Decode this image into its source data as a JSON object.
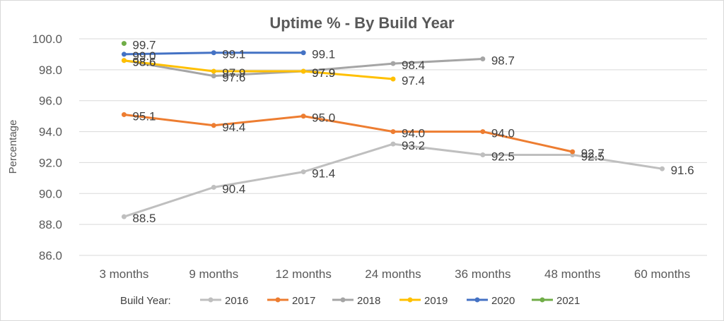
{
  "chart_data": {
    "type": "line",
    "title": "Uptime % - By Build Year",
    "xlabel": "",
    "ylabel": "Percentage",
    "ylim": [
      86.0,
      100.0
    ],
    "yticks": [
      "86.0",
      "88.0",
      "90.0",
      "92.0",
      "94.0",
      "96.0",
      "98.0",
      "100.0"
    ],
    "categories": [
      "3 months",
      "9 months",
      "12 months",
      "24 months",
      "36 months",
      "48 months",
      "60 months"
    ],
    "legend_title": "Build Year:",
    "legend_position": "bottom",
    "grid": true,
    "series": [
      {
        "name": "2016",
        "color": "#BFBFBF",
        "values": [
          88.5,
          90.4,
          91.4,
          93.2,
          92.5,
          92.5,
          91.6
        ],
        "labels": [
          "88.5",
          "90.4",
          "91.4",
          "93.2",
          "92.5",
          "92.5",
          "91.6"
        ]
      },
      {
        "name": "2017",
        "color": "#ED7D31",
        "values": [
          95.1,
          94.4,
          95.0,
          94.0,
          94.0,
          92.7,
          null
        ],
        "labels": [
          "95.1",
          "94.4",
          "95.0",
          "94.0",
          "94.0",
          "92.7",
          null
        ]
      },
      {
        "name": "2018",
        "color": "#A5A5A5",
        "values": [
          98.6,
          97.6,
          97.9,
          98.4,
          98.7,
          null,
          null
        ],
        "labels": [
          "98.6",
          "97.6",
          "97.9",
          "98.4",
          "98.7",
          null,
          null
        ]
      },
      {
        "name": "2019",
        "color": "#FFC000",
        "values": [
          98.6,
          97.9,
          97.9,
          97.4,
          null,
          null,
          null
        ],
        "labels": [
          "98.6",
          "97.9",
          "97.9",
          "97.4",
          null,
          null,
          null
        ]
      },
      {
        "name": "2020",
        "color": "#4472C4",
        "values": [
          99.0,
          99.1,
          99.1,
          null,
          null,
          null,
          null
        ],
        "labels": [
          "99.0",
          "99.1",
          "99.1",
          null,
          null,
          null,
          null
        ]
      },
      {
        "name": "2021",
        "color": "#70AD47",
        "values": [
          99.7,
          null,
          null,
          null,
          null,
          null,
          null
        ],
        "labels": [
          "99.7",
          null,
          null,
          null,
          null,
          null,
          null
        ]
      }
    ]
  }
}
